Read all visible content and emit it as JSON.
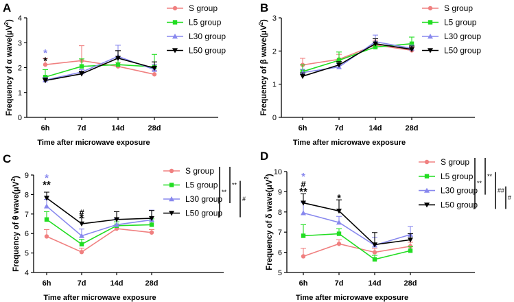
{
  "figure": {
    "series_styles": [
      {
        "name": "S group",
        "color": "#f08080",
        "marker": "circle"
      },
      {
        "name": "L5 group",
        "color": "#22dd22",
        "marker": "square"
      },
      {
        "name": "L30 group",
        "color": "#8888ee",
        "marker": "triangle-up"
      },
      {
        "name": "L50 group",
        "color": "#000000",
        "marker": "triangle-down"
      }
    ],
    "star_color_l30": "#8888ee",
    "star_color_black": "#000000"
  },
  "chart_data": [
    {
      "type": "line",
      "panel_label": "A",
      "title": "",
      "xlabel": "Time after microwave exposure",
      "ylabel_main": "Frequency of α wave(μV",
      "ylabel_sup": "2",
      "ylabel_end": ")",
      "categories": [
        "6h",
        "7d",
        "14d",
        "28d"
      ],
      "ylim": [
        0,
        4
      ],
      "yticks": [
        0,
        1,
        2,
        3,
        4
      ],
      "legend_position": "top-right",
      "series": [
        {
          "name": "S group",
          "values": [
            2.12,
            2.28,
            2.05,
            1.73
          ],
          "errors": [
            0.25,
            0.6,
            0.15,
            0.15
          ]
        },
        {
          "name": "L5 group",
          "values": [
            1.62,
            2.05,
            2.12,
            2.03
          ],
          "errors": [
            0.3,
            0.3,
            0.25,
            0.5
          ]
        },
        {
          "name": "L30 group",
          "values": [
            1.5,
            1.82,
            2.45,
            1.92
          ],
          "errors": [
            0.1,
            0.1,
            0.45,
            0.2
          ]
        },
        {
          "name": "L50 group",
          "values": [
            1.48,
            1.75,
            2.38,
            1.98
          ],
          "errors": [
            0.1,
            0.1,
            0.3,
            0.25
          ]
        }
      ],
      "annotations": [
        {
          "category": "6h",
          "y": 2.62,
          "text": "*",
          "color": "l30"
        },
        {
          "category": "6h",
          "y": 2.3,
          "text": "*",
          "color": "black"
        }
      ],
      "brackets": []
    },
    {
      "type": "line",
      "panel_label": "B",
      "title": "",
      "xlabel": "Time after microwave exposure",
      "ylabel_main": "Frequency of β wave(μV",
      "ylabel_sup": "2",
      "ylabel_end": ")",
      "categories": [
        "6h",
        "7d",
        "14d",
        "28d"
      ],
      "ylim": [
        0,
        3
      ],
      "yticks": [
        0,
        1,
        2,
        3
      ],
      "legend_position": "top-right",
      "series": [
        {
          "name": "S group",
          "values": [
            1.58,
            1.75,
            2.18,
            2.02
          ],
          "errors": [
            0.2,
            0.15,
            0.15,
            0.1
          ]
        },
        {
          "name": "L5 group",
          "values": [
            1.38,
            1.72,
            2.12,
            2.22
          ],
          "errors": [
            0.2,
            0.25,
            0.1,
            0.2
          ]
        },
        {
          "name": "L30 group",
          "values": [
            1.35,
            1.52,
            2.28,
            2.08
          ],
          "errors": [
            0.1,
            0.1,
            0.2,
            0.1
          ]
        },
        {
          "name": "L50 group",
          "values": [
            1.24,
            1.58,
            2.22,
            2.05
          ],
          "errors": [
            0.1,
            0.1,
            0.15,
            0.1
          ]
        }
      ],
      "annotations": [],
      "brackets": []
    },
    {
      "type": "line",
      "panel_label": "C",
      "title": "",
      "xlabel": "Time after microwave exposure",
      "ylabel_main": "Frequency of θ wave(μV",
      "ylabel_sup": "2",
      "ylabel_end": ")",
      "categories": [
        "6h",
        "7d",
        "14d",
        "28d"
      ],
      "ylim": [
        4,
        9
      ],
      "yticks": [
        4,
        5,
        6,
        7,
        8,
        9
      ],
      "legend_position": "top-right",
      "series": [
        {
          "name": "S group",
          "values": [
            5.85,
            5.05,
            6.25,
            6.05
          ],
          "errors": [
            0.35,
            0.2,
            0.15,
            0.15
          ]
        },
        {
          "name": "L5 group",
          "values": [
            6.72,
            5.45,
            6.4,
            6.45
          ],
          "errors": [
            0.4,
            0.25,
            0.2,
            0.3
          ]
        },
        {
          "name": "L30 group",
          "values": [
            7.4,
            5.88,
            6.45,
            6.7
          ],
          "errors": [
            0.35,
            0.35,
            0.3,
            0.5
          ]
        },
        {
          "name": "L50 group",
          "values": [
            7.82,
            6.5,
            6.72,
            6.78
          ],
          "errors": [
            0.3,
            0.3,
            0.4,
            0.4
          ]
        }
      ],
      "annotations": [
        {
          "category": "6h",
          "y": 8.9,
          "text": "*",
          "color": "l30"
        },
        {
          "category": "6h",
          "y": 8.55,
          "text": "**",
          "color": "black"
        },
        {
          "category": "7d",
          "y": 7.12,
          "text": "#",
          "color": "black"
        },
        {
          "category": "7d",
          "y": 6.85,
          "text": "*",
          "color": "black"
        }
      ],
      "brackets": [
        {
          "from": 1,
          "to": 4,
          "label": "**"
        },
        {
          "from": 1,
          "to": 3,
          "label": "**"
        },
        {
          "from": 2,
          "to": 4,
          "label": "#"
        }
      ]
    },
    {
      "type": "line",
      "panel_label": "D",
      "title": "",
      "xlabel": "Time after microwave exposure",
      "ylabel_main": "Frequency of δ wave(μV",
      "ylabel_sup": "2",
      "ylabel_end": ")",
      "categories": [
        "6h",
        "7d",
        "14d",
        "28d"
      ],
      "ylim": [
        5,
        10
      ],
      "yticks": [
        5,
        6,
        7,
        8,
        9,
        10
      ],
      "legend_position": "top-right",
      "series": [
        {
          "name": "S group",
          "values": [
            5.8,
            6.42,
            6.0,
            6.3
          ],
          "errors": [
            0.4,
            0.2,
            0.2,
            0.2
          ]
        },
        {
          "name": "L5 group",
          "values": [
            6.82,
            6.92,
            5.65,
            6.08
          ],
          "errors": [
            0.55,
            0.25,
            0.2,
            0.2
          ]
        },
        {
          "name": "L30 group",
          "values": [
            7.95,
            7.48,
            6.35,
            6.88
          ],
          "errors": [
            0.5,
            0.3,
            0.4,
            0.4
          ]
        },
        {
          "name": "L50 group",
          "values": [
            8.45,
            8.05,
            6.38,
            6.62
          ],
          "errors": [
            0.45,
            0.55,
            0.6,
            0.3
          ]
        }
      ],
      "annotations": [
        {
          "category": "6h",
          "y": 9.8,
          "text": "*",
          "color": "l30"
        },
        {
          "category": "6h",
          "y": 9.42,
          "text": "#",
          "color": "black"
        },
        {
          "category": "6h",
          "y": 9.05,
          "text": "**",
          "color": "black"
        },
        {
          "category": "7d",
          "y": 8.72,
          "text": "*",
          "color": "black"
        }
      ],
      "brackets": [
        {
          "from": 1,
          "to": 4,
          "label": "**"
        },
        {
          "from": 1,
          "to": 3,
          "label": "**"
        },
        {
          "from": 2,
          "to": 4,
          "label": "##"
        },
        {
          "from": 3,
          "to": 4,
          "label": "#"
        }
      ]
    }
  ]
}
